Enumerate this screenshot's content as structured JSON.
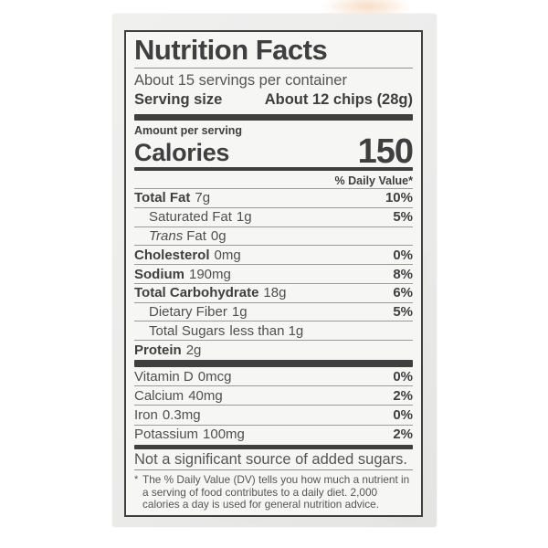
{
  "colors": {
    "label_border": "#3f3f3f",
    "bold_text": "#3f3f3f",
    "regular_text": "#4f4f4f",
    "hairline": "#9a9a9a",
    "label_bg": "#f6f6f5",
    "package_bg": "#ebebea",
    "page_bg": "#ffffff"
  },
  "label": {
    "title": "Nutrition Facts",
    "servings_per_container": "About 15 servings per container",
    "serving_size": {
      "label": "Serving size",
      "value": "About 12 chips (28g)"
    },
    "amount_per_serving": "Amount per serving",
    "calories": {
      "label": "Calories",
      "value": "150"
    },
    "daily_value_header": "% Daily Value*",
    "nutrients": [
      {
        "name": "Total Fat",
        "amount": "7g",
        "dv": "10%"
      },
      {
        "name": "Saturated Fat",
        "amount": "1g",
        "dv": "5%"
      },
      {
        "name_italic": "Trans",
        "name_rest": "Fat",
        "amount": "0g",
        "dv": ""
      },
      {
        "name": "Cholesterol",
        "amount": "0mg",
        "dv": "0%"
      },
      {
        "name": "Sodium",
        "amount": "190mg",
        "dv": "8%"
      },
      {
        "name": "Total Carbohydrate",
        "amount": "18g",
        "dv": "6%"
      },
      {
        "name": "Dietary Fiber",
        "amount": "1g",
        "dv": "5%"
      },
      {
        "name": "Total Sugars",
        "amount": "less than 1g",
        "dv": ""
      },
      {
        "name": "Protein",
        "amount": "2g",
        "dv": ""
      }
    ],
    "micronutrients": [
      {
        "name": "Vitamin D",
        "amount": "0mcg",
        "dv": "0%"
      },
      {
        "name": "Calcium",
        "amount": "40mg",
        "dv": "2%"
      },
      {
        "name": "Iron",
        "amount": "0.3mg",
        "dv": "0%"
      },
      {
        "name": "Potassium",
        "amount": "100mg",
        "dv": "2%"
      }
    ],
    "disclaimer": "Not a significant source of added sugars.",
    "footnote_marker": "*",
    "footnote": "The % Daily Value (DV) tells you how much a nutrient in a serving of food contributes to a daily diet. 2,000 calories a day is used for general nutrition advice."
  }
}
